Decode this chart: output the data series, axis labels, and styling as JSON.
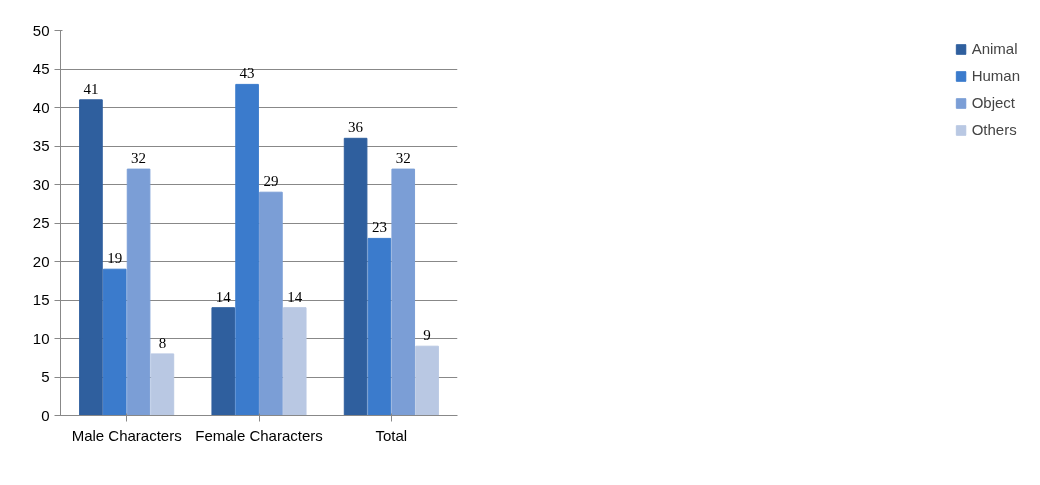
{
  "chart_data": {
    "type": "bar",
    "categories": [
      "Male Characters",
      "Female Characters",
      "Total"
    ],
    "series": [
      {
        "name": "Animal",
        "color": "#2f5f9e",
        "values": [
          41,
          14,
          36
        ]
      },
      {
        "name": "Human",
        "color": "#3b7bcc",
        "values": [
          19,
          43,
          23
        ]
      },
      {
        "name": "Object",
        "color": "#7b9ed6",
        "values": [
          32,
          29,
          32
        ]
      },
      {
        "name": "Others",
        "color": "#b9c8e3",
        "values": [
          8,
          14,
          9
        ]
      }
    ],
    "ylim": [
      0,
      50
    ],
    "yticks": [
      0,
      5,
      10,
      15,
      20,
      25,
      30,
      35,
      40,
      45,
      50
    ],
    "grid": "y",
    "legend": "right",
    "data_labels": true
  }
}
